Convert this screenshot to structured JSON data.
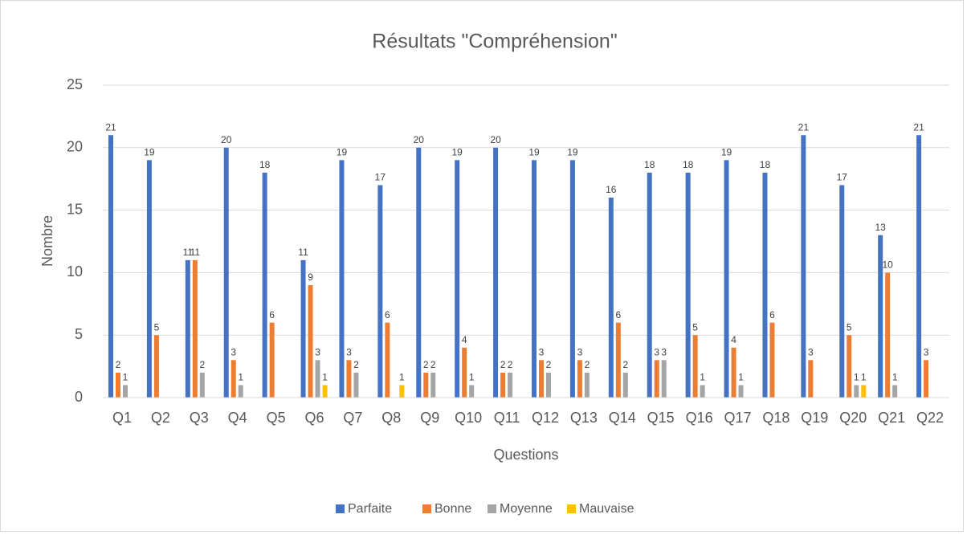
{
  "chart_data": {
    "type": "bar",
    "title": "Résultats \"Compréhension\"",
    "x_label": "Questions",
    "y_label": "Nombre",
    "categories": [
      "Q1",
      "Q2",
      "Q3",
      "Q4",
      "Q5",
      "Q6",
      "Q7",
      "Q8",
      "Q9",
      "Q10",
      "Q11",
      "Q12",
      "Q13",
      "Q14",
      "Q15",
      "Q16",
      "Q17",
      "Q18",
      "Q19",
      "Q20",
      "Q21",
      "Q22"
    ],
    "series": [
      {
        "name": "Parfaite",
        "color": "#4472c4",
        "values": [
          21,
          19,
          11,
          20,
          18,
          11,
          19,
          17,
          20,
          19,
          20,
          19,
          19,
          16,
          18,
          18,
          19,
          18,
          21,
          17,
          13,
          21
        ]
      },
      {
        "name": "Bonne",
        "color": "#ed7d31",
        "values": [
          2,
          5,
          11,
          3,
          6,
          9,
          3,
          6,
          2,
          4,
          2,
          3,
          3,
          6,
          3,
          5,
          4,
          6,
          3,
          5,
          10,
          3
        ]
      },
      {
        "name": "Moyenne",
        "color": "#a5a5a5",
        "values": [
          1,
          null,
          2,
          1,
          null,
          3,
          2,
          null,
          2,
          1,
          2,
          2,
          2,
          2,
          3,
          1,
          1,
          null,
          null,
          1,
          1,
          null
        ]
      },
      {
        "name": "Mauvaise",
        "color": "#ffc000",
        "values": [
          null,
          null,
          null,
          null,
          null,
          1,
          null,
          1,
          null,
          null,
          null,
          null,
          null,
          null,
          null,
          null,
          null,
          null,
          null,
          1,
          null,
          null
        ]
      }
    ],
    "ylim": [
      0,
      25
    ],
    "yticks": [
      0,
      5,
      10,
      15,
      20,
      25
    ],
    "grid": true,
    "legend": "bottom"
  }
}
